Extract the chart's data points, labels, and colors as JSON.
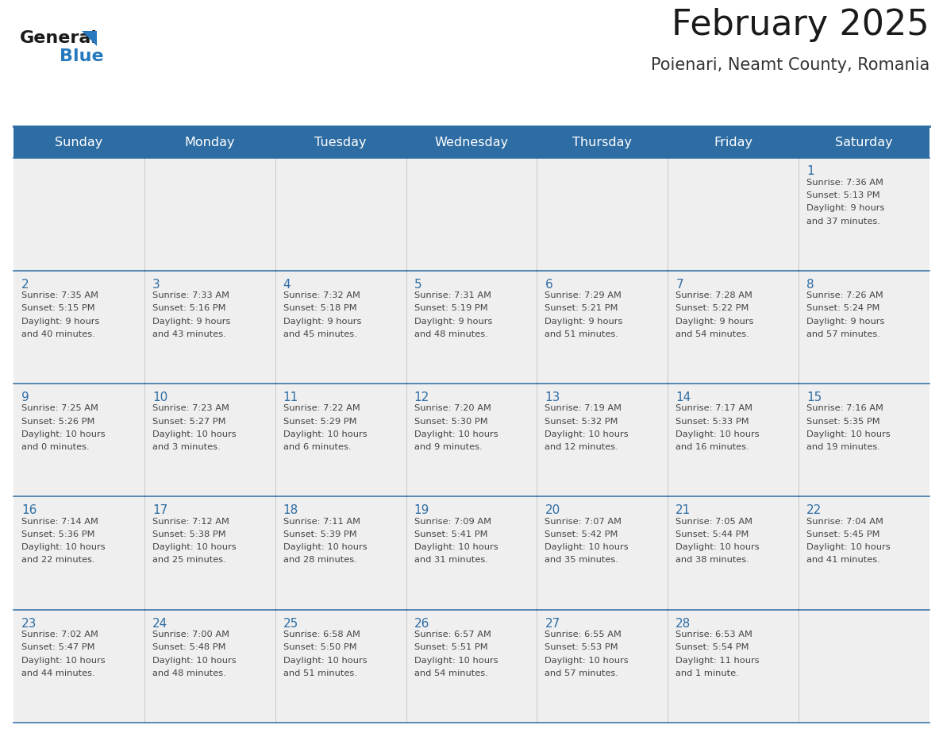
{
  "title": "February 2025",
  "subtitle": "Poienari, Neamt County, Romania",
  "days_of_week": [
    "Sunday",
    "Monday",
    "Tuesday",
    "Wednesday",
    "Thursday",
    "Friday",
    "Saturday"
  ],
  "header_bg": "#2E6DA4",
  "header_text": "#FFFFFF",
  "cell_bg": "#EFEFEF",
  "border_color": "#2E6DA4",
  "title_color": "#1a1a1a",
  "subtitle_color": "#333333",
  "day_number_color": "#2E6DA4",
  "info_color": "#444444",
  "logo_general_color": "#1a1a1a",
  "logo_blue_color": "#2779BD",
  "fig_width": 11.88,
  "fig_height": 9.18,
  "weeks": [
    [
      null,
      null,
      null,
      null,
      null,
      null,
      {
        "day": 1,
        "sunrise": "7:36 AM",
        "sunset": "5:13 PM",
        "daylight_line1": "Daylight: 9 hours",
        "daylight_line2": "and 37 minutes."
      }
    ],
    [
      {
        "day": 2,
        "sunrise": "7:35 AM",
        "sunset": "5:15 PM",
        "daylight_line1": "Daylight: 9 hours",
        "daylight_line2": "and 40 minutes."
      },
      {
        "day": 3,
        "sunrise": "7:33 AM",
        "sunset": "5:16 PM",
        "daylight_line1": "Daylight: 9 hours",
        "daylight_line2": "and 43 minutes."
      },
      {
        "day": 4,
        "sunrise": "7:32 AM",
        "sunset": "5:18 PM",
        "daylight_line1": "Daylight: 9 hours",
        "daylight_line2": "and 45 minutes."
      },
      {
        "day": 5,
        "sunrise": "7:31 AM",
        "sunset": "5:19 PM",
        "daylight_line1": "Daylight: 9 hours",
        "daylight_line2": "and 48 minutes."
      },
      {
        "day": 6,
        "sunrise": "7:29 AM",
        "sunset": "5:21 PM",
        "daylight_line1": "Daylight: 9 hours",
        "daylight_line2": "and 51 minutes."
      },
      {
        "day": 7,
        "sunrise": "7:28 AM",
        "sunset": "5:22 PM",
        "daylight_line1": "Daylight: 9 hours",
        "daylight_line2": "and 54 minutes."
      },
      {
        "day": 8,
        "sunrise": "7:26 AM",
        "sunset": "5:24 PM",
        "daylight_line1": "Daylight: 9 hours",
        "daylight_line2": "and 57 minutes."
      }
    ],
    [
      {
        "day": 9,
        "sunrise": "7:25 AM",
        "sunset": "5:26 PM",
        "daylight_line1": "Daylight: 10 hours",
        "daylight_line2": "and 0 minutes."
      },
      {
        "day": 10,
        "sunrise": "7:23 AM",
        "sunset": "5:27 PM",
        "daylight_line1": "Daylight: 10 hours",
        "daylight_line2": "and 3 minutes."
      },
      {
        "day": 11,
        "sunrise": "7:22 AM",
        "sunset": "5:29 PM",
        "daylight_line1": "Daylight: 10 hours",
        "daylight_line2": "and 6 minutes."
      },
      {
        "day": 12,
        "sunrise": "7:20 AM",
        "sunset": "5:30 PM",
        "daylight_line1": "Daylight: 10 hours",
        "daylight_line2": "and 9 minutes."
      },
      {
        "day": 13,
        "sunrise": "7:19 AM",
        "sunset": "5:32 PM",
        "daylight_line1": "Daylight: 10 hours",
        "daylight_line2": "and 12 minutes."
      },
      {
        "day": 14,
        "sunrise": "7:17 AM",
        "sunset": "5:33 PM",
        "daylight_line1": "Daylight: 10 hours",
        "daylight_line2": "and 16 minutes."
      },
      {
        "day": 15,
        "sunrise": "7:16 AM",
        "sunset": "5:35 PM",
        "daylight_line1": "Daylight: 10 hours",
        "daylight_line2": "and 19 minutes."
      }
    ],
    [
      {
        "day": 16,
        "sunrise": "7:14 AM",
        "sunset": "5:36 PM",
        "daylight_line1": "Daylight: 10 hours",
        "daylight_line2": "and 22 minutes."
      },
      {
        "day": 17,
        "sunrise": "7:12 AM",
        "sunset": "5:38 PM",
        "daylight_line1": "Daylight: 10 hours",
        "daylight_line2": "and 25 minutes."
      },
      {
        "day": 18,
        "sunrise": "7:11 AM",
        "sunset": "5:39 PM",
        "daylight_line1": "Daylight: 10 hours",
        "daylight_line2": "and 28 minutes."
      },
      {
        "day": 19,
        "sunrise": "7:09 AM",
        "sunset": "5:41 PM",
        "daylight_line1": "Daylight: 10 hours",
        "daylight_line2": "and 31 minutes."
      },
      {
        "day": 20,
        "sunrise": "7:07 AM",
        "sunset": "5:42 PM",
        "daylight_line1": "Daylight: 10 hours",
        "daylight_line2": "and 35 minutes."
      },
      {
        "day": 21,
        "sunrise": "7:05 AM",
        "sunset": "5:44 PM",
        "daylight_line1": "Daylight: 10 hours",
        "daylight_line2": "and 38 minutes."
      },
      {
        "day": 22,
        "sunrise": "7:04 AM",
        "sunset": "5:45 PM",
        "daylight_line1": "Daylight: 10 hours",
        "daylight_line2": "and 41 minutes."
      }
    ],
    [
      {
        "day": 23,
        "sunrise": "7:02 AM",
        "sunset": "5:47 PM",
        "daylight_line1": "Daylight: 10 hours",
        "daylight_line2": "and 44 minutes."
      },
      {
        "day": 24,
        "sunrise": "7:00 AM",
        "sunset": "5:48 PM",
        "daylight_line1": "Daylight: 10 hours",
        "daylight_line2": "and 48 minutes."
      },
      {
        "day": 25,
        "sunrise": "6:58 AM",
        "sunset": "5:50 PM",
        "daylight_line1": "Daylight: 10 hours",
        "daylight_line2": "and 51 minutes."
      },
      {
        "day": 26,
        "sunrise": "6:57 AM",
        "sunset": "5:51 PM",
        "daylight_line1": "Daylight: 10 hours",
        "daylight_line2": "and 54 minutes."
      },
      {
        "day": 27,
        "sunrise": "6:55 AM",
        "sunset": "5:53 PM",
        "daylight_line1": "Daylight: 10 hours",
        "daylight_line2": "and 57 minutes."
      },
      {
        "day": 28,
        "sunrise": "6:53 AM",
        "sunset": "5:54 PM",
        "daylight_line1": "Daylight: 11 hours",
        "daylight_line2": "and 1 minute."
      },
      null
    ]
  ]
}
